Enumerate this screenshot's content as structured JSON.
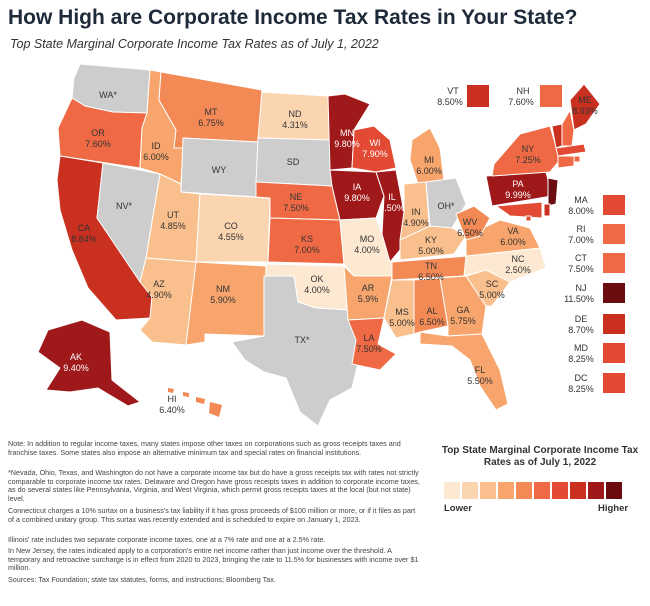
{
  "title": "How High are Corporate Income Tax Rates in Your State?",
  "subtitle": "Top State Marginal Corporate Income Tax Rates as of July 1, 2022",
  "colors": {
    "none": "#cdcdcd",
    "scale": [
      "#fde8d2",
      "#fbd4b0",
      "#f9bf8c",
      "#f7a56c",
      "#f38a55",
      "#ef6a44",
      "#e34a33",
      "#c9301f",
      "#a0191a",
      "#6b0c10"
    ]
  },
  "states": {
    "WA": {
      "abbr": "WA*",
      "rate": ""
    },
    "OR": {
      "abbr": "OR",
      "rate": "7.60%"
    },
    "CA": {
      "abbr": "CA",
      "rate": "8.84%"
    },
    "NV": {
      "abbr": "NV*",
      "rate": ""
    },
    "ID": {
      "abbr": "ID",
      "rate": "6.00%"
    },
    "MT": {
      "abbr": "MT",
      "rate": "6.75%"
    },
    "WY": {
      "abbr": "WY",
      "rate": ""
    },
    "UT": {
      "abbr": "UT",
      "rate": "4.85%"
    },
    "CO": {
      "abbr": "CO",
      "rate": "4.55%"
    },
    "AZ": {
      "abbr": "AZ",
      "rate": "4.90%"
    },
    "NM": {
      "abbr": "NM",
      "rate": "5.90%"
    },
    "ND": {
      "abbr": "ND",
      "rate": "4.31%"
    },
    "SD": {
      "abbr": "SD",
      "rate": ""
    },
    "NE": {
      "abbr": "NE",
      "rate": "7.50%"
    },
    "KS": {
      "abbr": "KS",
      "rate": "7.00%"
    },
    "OK": {
      "abbr": "OK",
      "rate": "4.00%"
    },
    "TX": {
      "abbr": "TX*",
      "rate": ""
    },
    "MN": {
      "abbr": "MN",
      "rate": "9.80%"
    },
    "IA": {
      "abbr": "IA",
      "rate": "9.80%"
    },
    "MO": {
      "abbr": "MO",
      "rate": "4.00%"
    },
    "AR": {
      "abbr": "AR",
      "rate": "5.9%"
    },
    "LA": {
      "abbr": "LA",
      "rate": "7.50%"
    },
    "WI": {
      "abbr": "WI",
      "rate": "7.90%"
    },
    "IL": {
      "abbr": "IL",
      "rate": "9.50%"
    },
    "MI": {
      "abbr": "MI",
      "rate": "6.00%"
    },
    "IN": {
      "abbr": "IN",
      "rate": "4.90%"
    },
    "OH": {
      "abbr": "OH*",
      "rate": ""
    },
    "KY": {
      "abbr": "KY",
      "rate": "5.00%"
    },
    "TN": {
      "abbr": "TN",
      "rate": "6.50%"
    },
    "MS": {
      "abbr": "MS",
      "rate": "5.00%"
    },
    "AL": {
      "abbr": "AL",
      "rate": "6.50%"
    },
    "GA": {
      "abbr": "GA",
      "rate": "5.75%"
    },
    "FL": {
      "abbr": "FL",
      "rate": "5.50%"
    },
    "SC": {
      "abbr": "SC",
      "rate": "5.00%"
    },
    "NC": {
      "abbr": "NC",
      "rate": "2.50%"
    },
    "VA": {
      "abbr": "VA",
      "rate": "6.00%"
    },
    "WV": {
      "abbr": "WV",
      "rate": "6.50%"
    },
    "PA": {
      "abbr": "PA",
      "rate": "9.99%"
    },
    "NY": {
      "abbr": "NY",
      "rate": "7.25%"
    },
    "ME": {
      "abbr": "ME",
      "rate": "8.93%"
    },
    "VT": {
      "abbr": "VT",
      "rate": "8.50%"
    },
    "NH": {
      "abbr": "NH",
      "rate": "7.60%"
    },
    "AK": {
      "abbr": "AK",
      "rate": "9.40%"
    },
    "HI": {
      "abbr": "HI",
      "rate": "6.40%"
    },
    "MA": {
      "abbr": "MA",
      "rate": "8.00%"
    },
    "RI": {
      "abbr": "RI",
      "rate": "7.00%"
    },
    "CT": {
      "abbr": "CT",
      "rate": "7.50%"
    },
    "NJ": {
      "abbr": "NJ",
      "rate": "11.50%"
    },
    "DE": {
      "abbr": "DE",
      "rate": "8.70%"
    },
    "MD": {
      "abbr": "MD",
      "rate": "8.25%"
    },
    "DC": {
      "abbr": "DC",
      "rate": "8.25%"
    }
  },
  "notes": {
    "n1": "Note: In addition to regular income taxes, many states impose other taxes on corporations such as gross receipts taxes and franchise taxes. Some states also impose an alternative minimum tax and special rates on financial institutions.",
    "n2": "*Nevada, Ohio, Texas, and Washington do not have a corporate income tax but do have a gross receipts tax with rates not strictly comparable to corporate income tax rates. Delaware and Oregon have gross receipts taxes in addition to corporate income taxes, as do several states like Pennsylvania, Virginia, and West Virginia, which permit gross receipts taxes at the local (but not state) level.",
    "n3": "Connecticut charges a 10% surtax on a business's tax liability if it has gross proceeds of $100 million or more, or if it files as part of a combined unitary group. This surtax was recently extended and is scheduled to expire on January 1, 2023.",
    "n4": "Illinois' rate includes two separate corporate income taxes, one at a 7% rate and one at a 2.5% rate.",
    "n5": "In New Jersey, the rates indicated apply to a corporation's entire net income rather than just income over the threshold. A temporary and retroactive surcharge is in effect from 2020 to 2023, bringing the rate to 11.5% for businesses with income over $1 million.",
    "sources": "Sources: Tax Foundation; state tax statutes, forms, and instructions; Bloomberg Tax."
  },
  "legend": {
    "title": "Top State Marginal Corporate Income Tax Rates as of July 1, 2022",
    "low": "Lower",
    "high": "Higher"
  }
}
